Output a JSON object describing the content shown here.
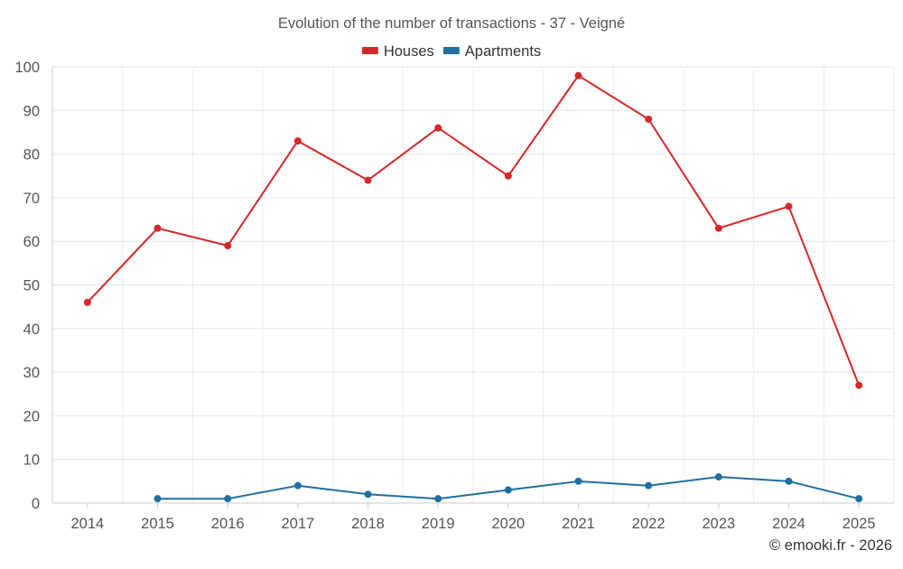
{
  "chart_data": {
    "type": "line",
    "title": "Evolution of the number of transactions - 37 - Veigné",
    "categories": [
      "2014",
      "2015",
      "2016",
      "2017",
      "2018",
      "2019",
      "2020",
      "2021",
      "2022",
      "2023",
      "2024",
      "2025"
    ],
    "series": [
      {
        "name": "Houses",
        "color": "#d62728",
        "values": [
          46,
          63,
          59,
          83,
          74,
          86,
          75,
          98,
          88,
          63,
          68,
          27
        ]
      },
      {
        "name": "Apartments",
        "color": "#1f6fa0",
        "values": [
          null,
          1,
          1,
          4,
          2,
          1,
          3,
          5,
          4,
          6,
          5,
          1
        ]
      }
    ],
    "y_ticks": [
      "0",
      "10",
      "20",
      "30",
      "40",
      "50",
      "60",
      "70",
      "80",
      "90",
      "100"
    ],
    "ylim": [
      0,
      100
    ],
    "xlabel": "",
    "ylabel": "",
    "grid": true,
    "legend_position": "top-center"
  },
  "credit": "© emooki.fr - 2026"
}
